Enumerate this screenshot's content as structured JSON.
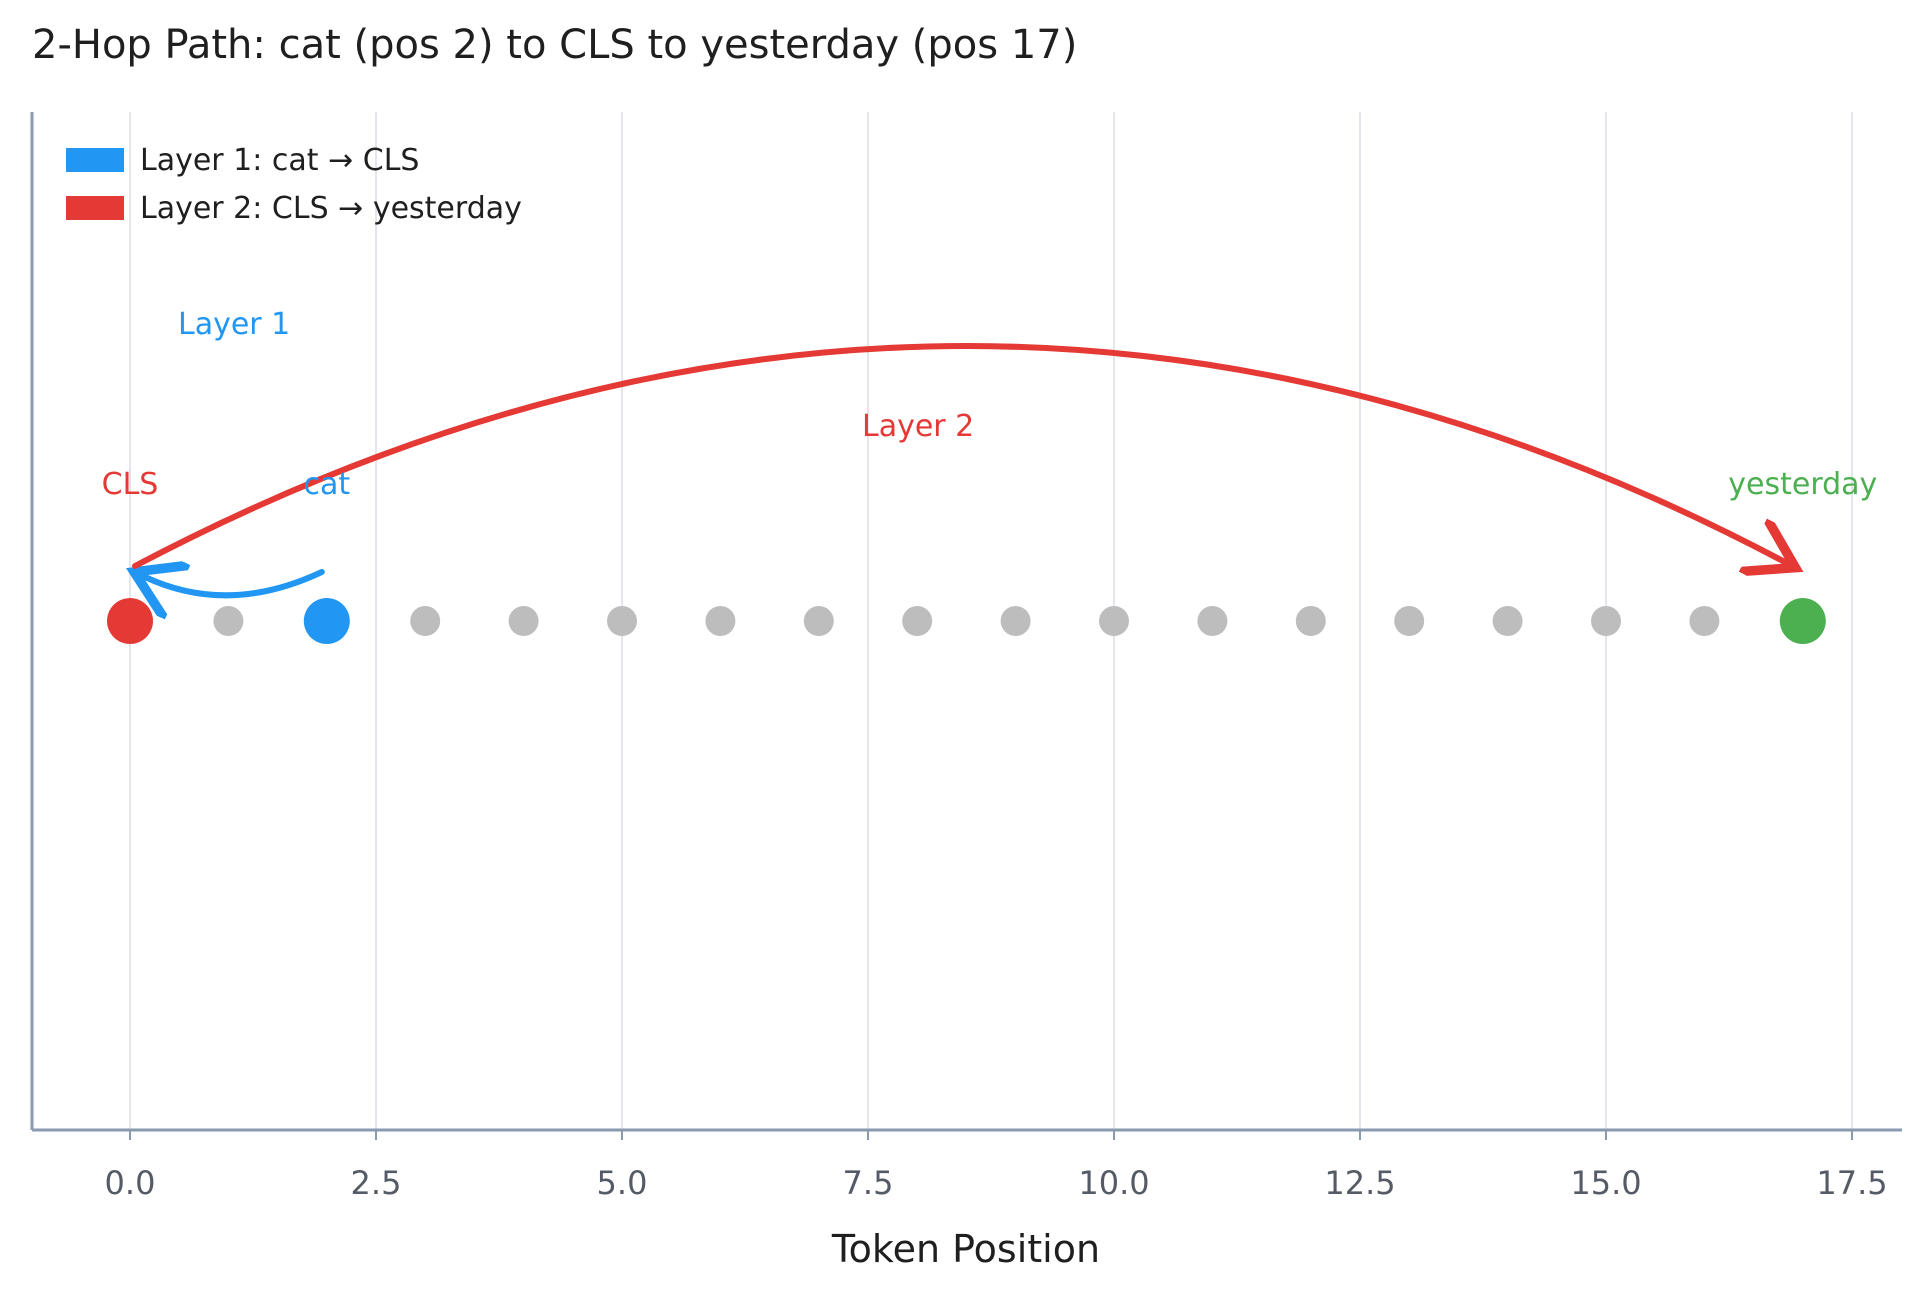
{
  "chart_data": {
    "type": "scatter",
    "title": "2-Hop Path: cat (pos 2) to CLS to yesterday (pos 17)",
    "xlabel": "Token Position",
    "ylabel": "",
    "xlim": [
      -1,
      18.0
    ],
    "x_ticks": [
      0.0,
      2.5,
      5.0,
      7.5,
      10.0,
      12.5,
      15.0,
      17.5
    ],
    "x_tick_labels": [
      "0.0",
      "2.5",
      "5.0",
      "7.5",
      "10.0",
      "12.5",
      "15.0",
      "17.5"
    ],
    "grid": "vertical",
    "legend_placement": "top-left",
    "legend": [
      {
        "label": "Layer 1: cat → CLS",
        "color": "#2196f3"
      },
      {
        "label": "Layer 2: CLS → yesterday",
        "color": "#e53935"
      }
    ],
    "points": [
      {
        "x": 0,
        "role": "CLS",
        "label": "CLS",
        "color": "#e53935"
      },
      {
        "x": 1,
        "color": "#bdbdbd"
      },
      {
        "x": 2,
        "role": "cat",
        "label": "cat",
        "color": "#2196f3"
      },
      {
        "x": 3,
        "color": "#bdbdbd"
      },
      {
        "x": 4,
        "color": "#bdbdbd"
      },
      {
        "x": 5,
        "color": "#bdbdbd"
      },
      {
        "x": 6,
        "color": "#bdbdbd"
      },
      {
        "x": 7,
        "color": "#bdbdbd"
      },
      {
        "x": 8,
        "color": "#bdbdbd"
      },
      {
        "x": 9,
        "color": "#bdbdbd"
      },
      {
        "x": 10,
        "color": "#bdbdbd"
      },
      {
        "x": 11,
        "color": "#bdbdbd"
      },
      {
        "x": 12,
        "color": "#bdbdbd"
      },
      {
        "x": 13,
        "color": "#bdbdbd"
      },
      {
        "x": 14,
        "color": "#bdbdbd"
      },
      {
        "x": 15,
        "color": "#bdbdbd"
      },
      {
        "x": 16,
        "color": "#bdbdbd"
      },
      {
        "x": 17,
        "role": "yesterday",
        "label": "yesterday",
        "color": "#4caf50"
      }
    ],
    "arrows": [
      {
        "from": 2,
        "to": 0,
        "label": "Layer 1",
        "color": "#2196f3"
      },
      {
        "from": 0,
        "to": 17,
        "label": "Layer 2",
        "color": "#e53935"
      }
    ],
    "colors": {
      "axis": "#8a9ab0",
      "grid": "#e3e6ec",
      "tick_text": "#555b66",
      "text": "#1f1f1f"
    }
  }
}
